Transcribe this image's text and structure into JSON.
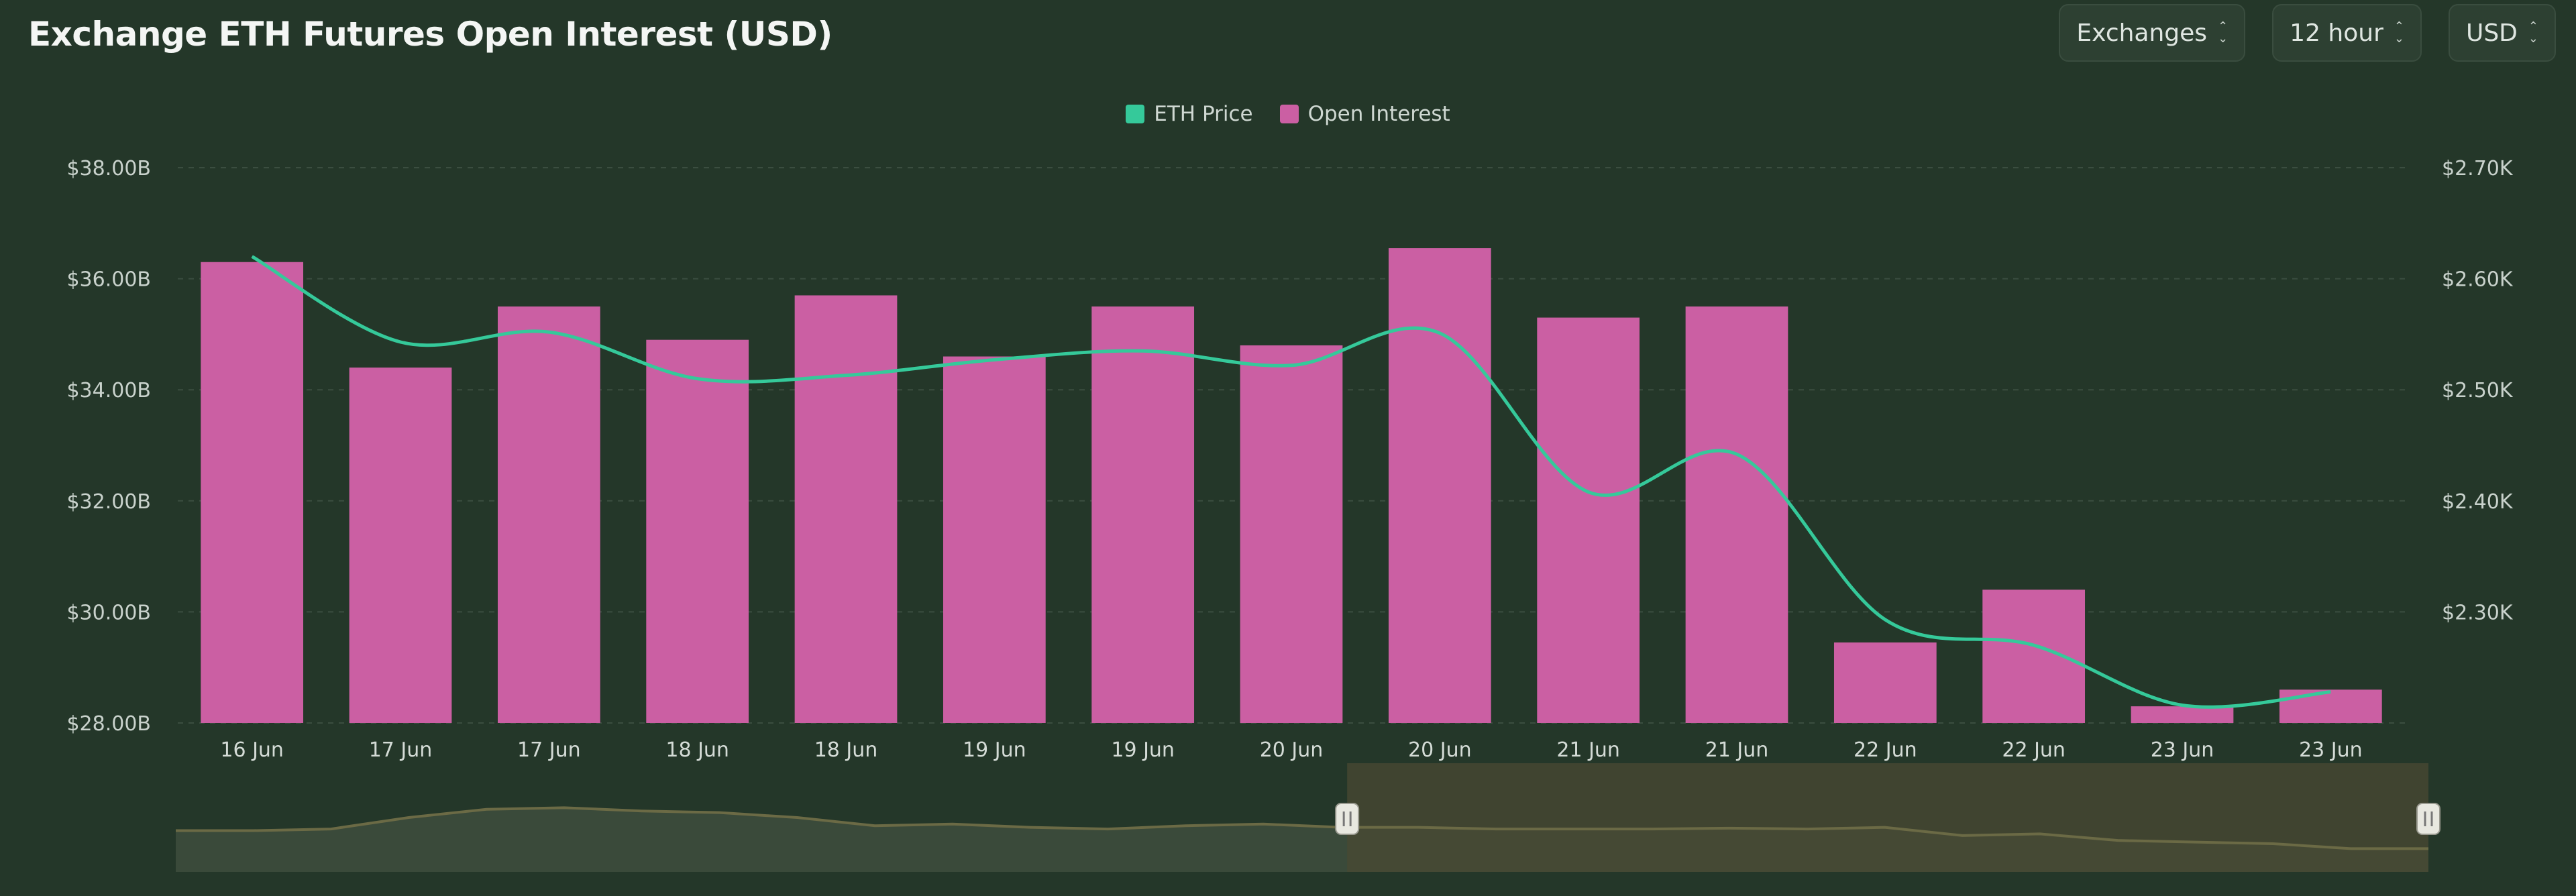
{
  "header": {
    "title": "Exchange ETH Futures Open Interest (USD)",
    "selects": [
      {
        "name": "exchanges-select",
        "label": "Exchanges"
      },
      {
        "name": "interval-select",
        "label": "12 hour"
      },
      {
        "name": "currency-select",
        "label": "USD"
      }
    ]
  },
  "colors": {
    "background": "#243729",
    "bar": "#cb5fa3",
    "line": "#35c99a",
    "gridline": "#3b4e40",
    "navigator_fill": "#3a4a3a",
    "navigator_selected": "#4a4a33",
    "navigator_line": "#6b6a45"
  },
  "chart_data": {
    "type": "bar",
    "title": "Exchange ETH Futures Open Interest (USD)",
    "categories": [
      "16 Jun",
      "17 Jun",
      "17 Jun",
      "18 Jun",
      "18 Jun",
      "19 Jun",
      "19 Jun",
      "20 Jun",
      "20 Jun",
      "21 Jun",
      "21 Jun",
      "22 Jun",
      "22 Jun",
      "23 Jun",
      "23 Jun"
    ],
    "series": [
      {
        "name": "Open Interest",
        "type": "bar",
        "axis": "left",
        "values": [
          36.3,
          34.4,
          35.5,
          34.9,
          35.7,
          34.6,
          35.5,
          34.8,
          36.55,
          35.3,
          35.5,
          29.45,
          30.4,
          28.3,
          28.6
        ]
      },
      {
        "name": "ETH Price",
        "type": "line",
        "axis": "right",
        "values": [
          2620,
          2543,
          2552,
          2510,
          2513,
          2527,
          2535,
          2522,
          2551,
          2408,
          2442,
          2293,
          2270,
          2216,
          2228
        ]
      }
    ],
    "y_left": {
      "min": 28,
      "max": 38,
      "ticks": [
        "$28.00B",
        "$30.00B",
        "$32.00B",
        "$34.00B",
        "$36.00B",
        "$38.00B"
      ]
    },
    "y_right": {
      "min": 2200,
      "max": 2700,
      "ticks": [
        "$2.30K",
        "$2.40K",
        "$2.50K",
        "$2.60K",
        "$2.70K"
      ]
    },
    "legend_position": "top-center",
    "grid": "dashed-horizontal",
    "navigator": {
      "values": [
        0.34,
        0.34,
        0.36,
        0.5,
        0.6,
        0.62,
        0.58,
        0.56,
        0.5,
        0.4,
        0.42,
        0.38,
        0.36,
        0.4,
        0.42,
        0.38,
        0.38,
        0.36,
        0.36,
        0.36,
        0.37,
        0.36,
        0.38,
        0.28,
        0.3,
        0.22,
        0.2,
        0.18,
        0.12,
        0.12
      ],
      "selected_range": [
        0.52,
        1.0
      ]
    }
  }
}
